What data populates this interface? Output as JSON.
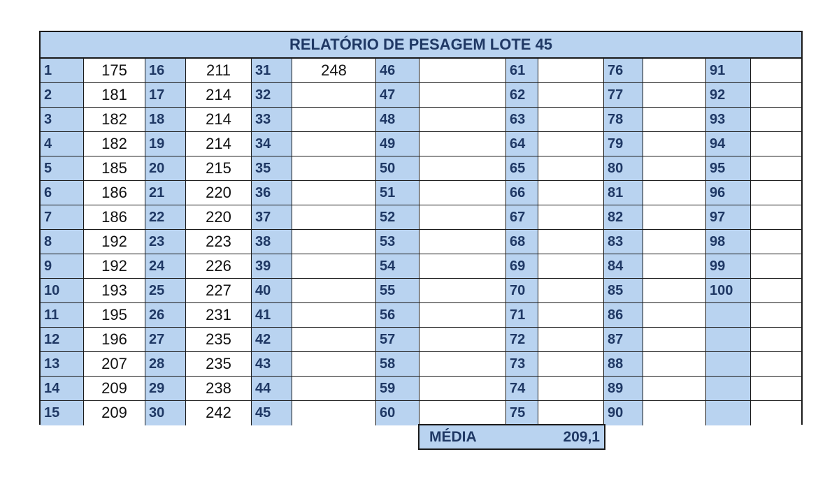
{
  "report": {
    "title": "RELATÓRIO DE PESAGEM LOTE 45",
    "weights": [
      "175",
      "181",
      "182",
      "182",
      "185",
      "186",
      "186",
      "192",
      "192",
      "193",
      "195",
      "196",
      "207",
      "209",
      "209",
      "211",
      "214",
      "214",
      "214",
      "215",
      "220",
      "220",
      "223",
      "226",
      "227",
      "231",
      "235",
      "235",
      "238",
      "242",
      "248"
    ],
    "count": 100,
    "empty_blue_cells_after": 100
  },
  "summary": {
    "label": "MÉDIA",
    "value": "209,1"
  },
  "colors": {
    "header_fill": "#b9d3f0",
    "header_text": "#1f3864",
    "border": "#1a1a1a"
  }
}
